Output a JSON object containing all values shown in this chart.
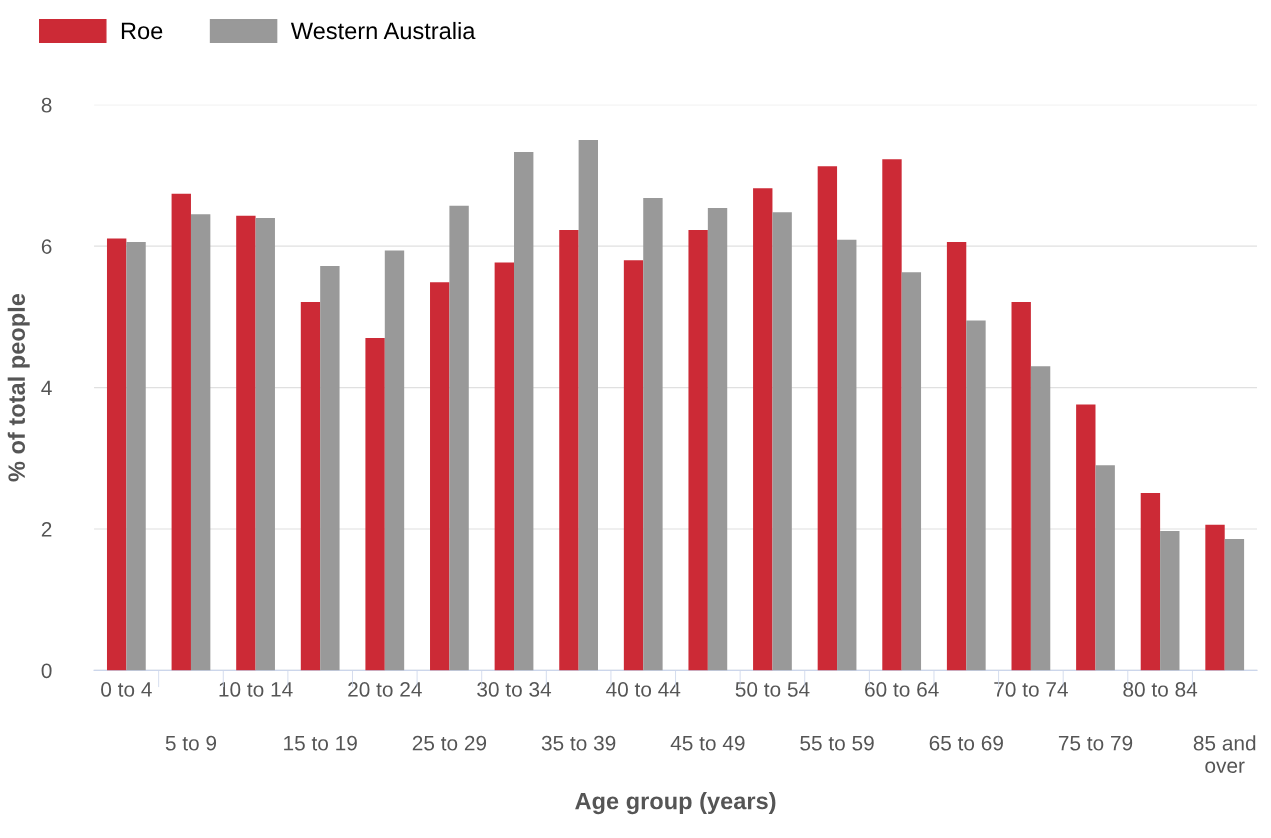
{
  "chart_data": {
    "type": "bar",
    "xlabel": "Age group (years)",
    "ylabel": "% of total people",
    "categories": [
      "0 to 4",
      "5 to 9",
      "10 to 14",
      "15 to 19",
      "20 to 24",
      "25 to 29",
      "30 to 34",
      "35 to 39",
      "40 to 44",
      "45 to 49",
      "50 to 54",
      "55 to 59",
      "60 to 64",
      "65 to 69",
      "70 to 74",
      "75 to 79",
      "80 to 84",
      "85 and\nover"
    ],
    "series": [
      {
        "name": "Roe",
        "color": "#cc2a36",
        "values": [
          6.11,
          6.74,
          6.43,
          5.21,
          4.7,
          5.49,
          5.77,
          6.23,
          5.8,
          6.23,
          6.82,
          7.13,
          7.23,
          6.06,
          5.21,
          3.76,
          2.51,
          2.06
        ]
      },
      {
        "name": "Western Australia",
        "color": "#999999",
        "values": [
          6.06,
          6.45,
          6.4,
          5.72,
          5.94,
          6.57,
          7.33,
          7.5,
          6.68,
          6.54,
          6.48,
          6.09,
          5.63,
          4.95,
          4.3,
          2.9,
          1.97,
          1.86
        ]
      }
    ],
    "ylim": [
      0,
      8
    ],
    "yticks": [
      0,
      2,
      4,
      6,
      8
    ],
    "grid": "y",
    "legend": "top left"
  }
}
